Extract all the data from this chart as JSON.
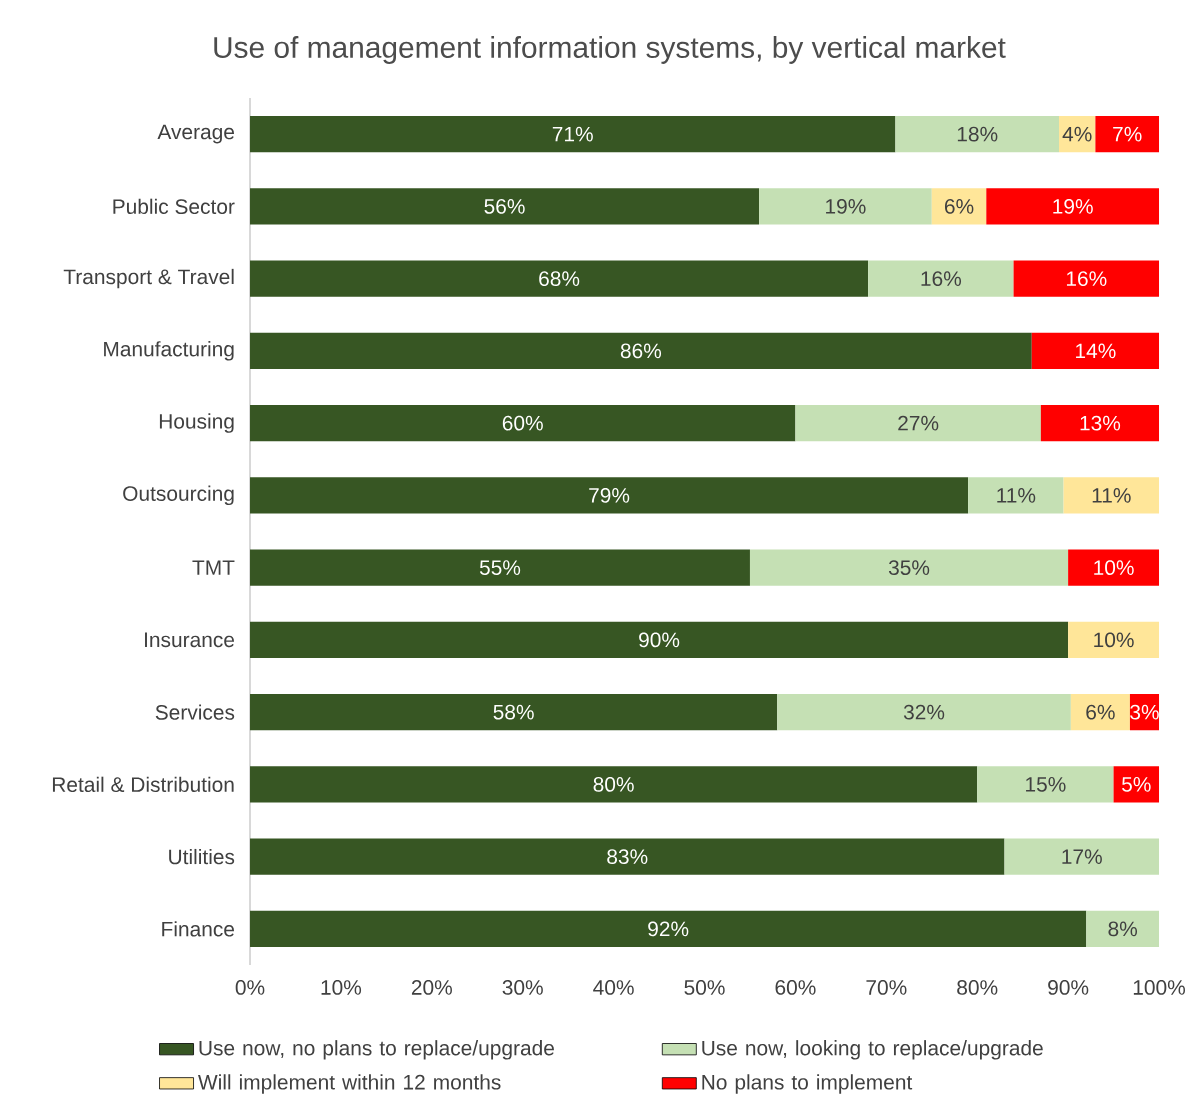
{
  "chart_data": {
    "type": "bar",
    "title": "Use of management information systems, by vertical market",
    "orientation": "horizontal",
    "stacked": true,
    "categories": [
      "Average",
      "Public Sector",
      "Transport & Travel",
      "Manufacturing",
      "Housing",
      "Outsourcing",
      "TMT",
      "Insurance",
      "Services",
      "Retail & Distribution",
      "Utilities",
      "Finance"
    ],
    "series": [
      {
        "name": "Use now, no plans to replace/upgrade",
        "color": "#375623",
        "values": [
          71,
          56,
          68,
          86,
          60,
          79,
          55,
          90,
          58,
          80,
          83,
          92
        ],
        "value_labels": [
          "71%",
          "56%",
          "68%",
          "86%",
          "60%",
          "79%",
          "55%",
          "90%",
          "58%",
          "80%",
          "83%",
          "92%"
        ]
      },
      {
        "name": "Use now, looking to replace/upgrade",
        "color": "#c5e0b4",
        "values": [
          18,
          19,
          16,
          null,
          27,
          10.5,
          35,
          null,
          32.3,
          15,
          17,
          8
        ],
        "value_labels": [
          "18%",
          "19%",
          "16%",
          null,
          "27%",
          "11%",
          "35%",
          null,
          "32%",
          "15%",
          "17%",
          "8%"
        ]
      },
      {
        "name": "Will implement within 12 months",
        "color": "#ffe699",
        "values": [
          4,
          6,
          null,
          null,
          null,
          10.5,
          null,
          10,
          6.5,
          null,
          null,
          null
        ],
        "value_labels": [
          "4%",
          "6%",
          null,
          null,
          null,
          "11%",
          null,
          "10%",
          "6%",
          null,
          null,
          null
        ]
      },
      {
        "name": "No plans to implement",
        "color": "#ff0000",
        "values": [
          7,
          19,
          16,
          14,
          13,
          null,
          10,
          null,
          3.2,
          5,
          null,
          null
        ],
        "value_labels": [
          "7%",
          "19%",
          "16%",
          "14%",
          "13%",
          null,
          "10%",
          null,
          "3%",
          "5%",
          null,
          null
        ]
      }
    ],
    "xlim": [
      0,
      100
    ],
    "xticks": [
      {
        "value": 0,
        "label": "0%"
      },
      {
        "value": 10,
        "label": "10%"
      },
      {
        "value": 20,
        "label": "20%"
      },
      {
        "value": 30,
        "label": "30%"
      },
      {
        "value": 40,
        "label": "40%"
      },
      {
        "value": 50,
        "label": "50%"
      },
      {
        "value": 60,
        "label": "60%"
      },
      {
        "value": 70,
        "label": "70%"
      },
      {
        "value": 80,
        "label": "80%"
      },
      {
        "value": 90,
        "label": "90%"
      },
      {
        "value": 100,
        "label": "100%"
      }
    ],
    "legend": "bottom",
    "grid": false
  }
}
